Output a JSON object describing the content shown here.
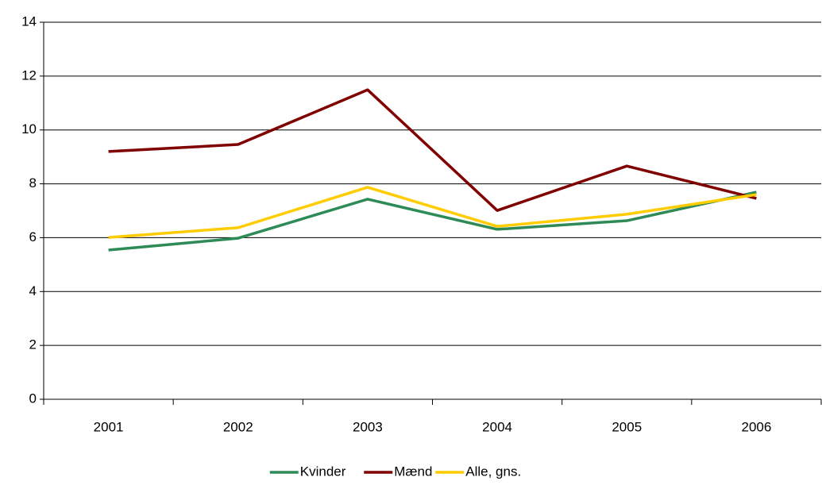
{
  "chart_data": {
    "type": "line",
    "categories": [
      "2001",
      "2002",
      "2003",
      "2004",
      "2005",
      "2006"
    ],
    "series": [
      {
        "name": "Kvinder",
        "color": "#2e8b57",
        "values": [
          5.54,
          5.98,
          7.43,
          6.31,
          6.63,
          7.69
        ]
      },
      {
        "name": "Mænd",
        "color": "#800000",
        "values": [
          9.2,
          9.46,
          11.49,
          7.01,
          8.66,
          7.46
        ]
      },
      {
        "name": "Alle, gns.",
        "color": "#ffcc00",
        "values": [
          6.01,
          6.37,
          7.87,
          6.42,
          6.87,
          7.6
        ]
      }
    ],
    "ylim": [
      0,
      14
    ],
    "yticks": [
      0,
      2,
      4,
      6,
      8,
      10,
      12,
      14
    ],
    "grid": true,
    "legend": "bottom"
  }
}
